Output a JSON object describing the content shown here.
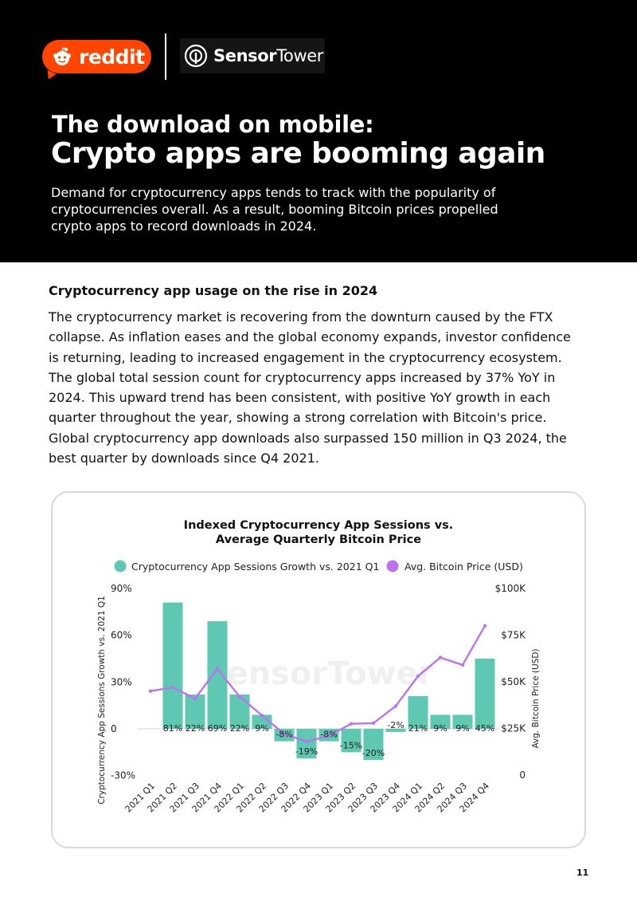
{
  "header": {
    "reddit_label": "reddit",
    "sensortower_part1": "Sensor",
    "sensortower_part2": "Tower",
    "subtitle": "The download on mobile:",
    "title": "Crypto apps are booming again",
    "intro": "Demand for cryptocurrency apps tends to track with the popularity of cryptocurrencies overall. As a result, booming Bitcoin prices propelled crypto apps to record downloads in 2024."
  },
  "section": {
    "heading": "Cryptocurrency app usage on the rise in 2024",
    "body": "The cryptocurrency market is recovering from the downturn caused by the FTX collapse. As inflation eases and the global economy expands, investor confidence is returning, leading to increased engagement in the cryptocurrency ecosystem. The global total session count for cryptocurrency apps increased by 37% YoY in 2024. This upward trend has been consistent, with positive YoY growth in each quarter throughout the year, showing a strong correlation with Bitcoin's price. Global cryptocurrency app downloads also surpassed 150 million in Q3 2024, the best quarter by downloads since Q4 2021."
  },
  "chart_data": {
    "type": "bar",
    "title_line1": "Indexed Cryptocurrency App Sessions vs.",
    "title_line2": "Average Quarterly Bitcoin Price",
    "watermark": "SensorTower",
    "categories": [
      "2021 Q1",
      "2021 Q2",
      "2021 Q3",
      "2021 Q4",
      "2022 Q1",
      "2022 Q2",
      "2022 Q3",
      "2022 Q4",
      "2023 Q1",
      "2023 Q2",
      "2023 Q3",
      "2023 Q4",
      "2024 Q1",
      "2024 Q2",
      "2024 Q3",
      "2024 Q4"
    ],
    "series": [
      {
        "name": "Cryptocurrency App Sessions Growth vs. 2021 Q1",
        "type": "bar",
        "axis": "left",
        "color": "#5ec8b2",
        "values": [
          null,
          81,
          22,
          69,
          22,
          9,
          -8,
          -19,
          -8,
          -15,
          -20,
          -2,
          21,
          9,
          9,
          45
        ],
        "labels": [
          "",
          "81%",
          "22%",
          "69%",
          "22%",
          "9%",
          "-8%",
          "-19%",
          "-8%",
          "-15%",
          "-20%",
          "-2%",
          "21%",
          "9%",
          "9%",
          "45%"
        ]
      },
      {
        "name": "Avg. Bitcoin Price (USD)",
        "type": "line",
        "axis": "right",
        "color": "#bb74f0",
        "values": [
          45000,
          47000,
          41000,
          57000,
          42000,
          32000,
          22000,
          18000,
          21000,
          27500,
          27800,
          37000,
          53000,
          63000,
          59000,
          80000
        ]
      }
    ],
    "y_left": {
      "label": "Cryptocurrency App Sessions Growth vs. 2021 Q1",
      "ticks": [
        90,
        60,
        30,
        0,
        -30
      ],
      "tick_labels": [
        "90%",
        "60%",
        "30%",
        "0",
        "-30%"
      ],
      "range": [
        -30,
        90
      ]
    },
    "y_right": {
      "label": "Avg. Bitcoin Price (USD)",
      "ticks": [
        100000,
        75000,
        50000,
        25000,
        0
      ],
      "tick_labels": [
        "$100K",
        "$75K",
        "$50K",
        "$25K",
        "0"
      ],
      "range": [
        0,
        100000
      ]
    },
    "legend_position": "top"
  },
  "page": {
    "number": "11"
  },
  "colors": {
    "accent_reddit": "#ff4500",
    "bar": "#5ec8b2",
    "line": "#bb74f0"
  },
  "icons": {
    "reddit": "reddit-snoo-icon",
    "sensortower": "sensortower-logo-icon"
  }
}
